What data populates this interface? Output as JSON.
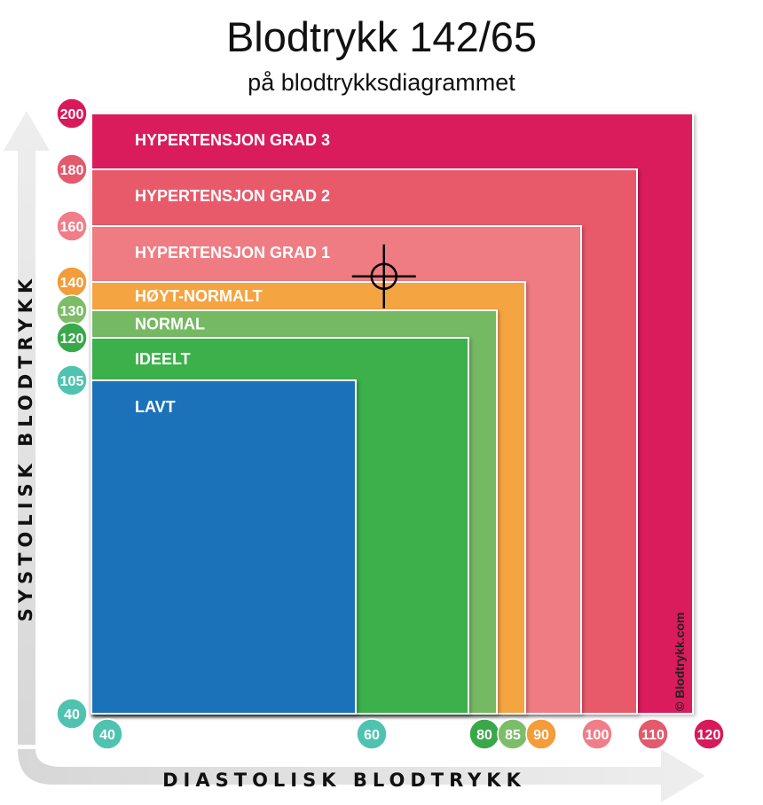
{
  "title": "Blodtrykk 142/65",
  "subtitle": "på blodtrykksdiagrammet",
  "watermark": "© Blodtrykk.com",
  "chart_data": {
    "type": "area",
    "xlabel": "DIASTOLISK BLODTRYKK",
    "ylabel": "SYSTOLISK BLODTRYKK",
    "x_ticks": [
      {
        "label": "40",
        "value": 40,
        "color": "#4fc3b0"
      },
      {
        "label": "60",
        "value": 60,
        "color": "#4fc3b0"
      },
      {
        "label": "80",
        "value": 80,
        "color": "#3aa84a"
      },
      {
        "label": "85",
        "value": 85,
        "color": "#7dbd6a"
      },
      {
        "label": "90",
        "value": 90,
        "color": "#f39c3a"
      },
      {
        "label": "100",
        "value": 100,
        "color": "#ef7e88"
      },
      {
        "label": "110",
        "value": 110,
        "color": "#e25a6c"
      },
      {
        "label": "120",
        "value": 120,
        "color": "#d81a5a"
      }
    ],
    "y_ticks": [
      {
        "label": "200",
        "value": 200,
        "color": "#d81a5a"
      },
      {
        "label": "180",
        "value": 180,
        "color": "#e25a6c"
      },
      {
        "label": "160",
        "value": 160,
        "color": "#ef7e88"
      },
      {
        "label": "140",
        "value": 140,
        "color": "#f39c3a"
      },
      {
        "label": "130",
        "value": 130,
        "color": "#7dbd6a"
      },
      {
        "label": "120",
        "value": 120,
        "color": "#3aa84a"
      },
      {
        "label": "105",
        "value": 105,
        "color": "#4fc3b0"
      },
      {
        "label": "40",
        "value": 40,
        "color": "#4fc3b0"
      }
    ],
    "zones": [
      {
        "name": "HYPERTENSJON GRAD 3",
        "x_max": 120,
        "y_max": 200,
        "color": "#da1b5c"
      },
      {
        "name": "HYPERTENSJON GRAD 2",
        "x_max": 110,
        "y_max": 180,
        "color": "#e85a6b"
      },
      {
        "name": "HYPERTENSJON GRAD 1",
        "x_max": 100,
        "y_max": 160,
        "color": "#ef7b82"
      },
      {
        "name": "HØYT-NORMALT",
        "x_max": 90,
        "y_max": 140,
        "color": "#f5a442"
      },
      {
        "name": "NORMAL",
        "x_max": 85,
        "y_max": 130,
        "color": "#74b963"
      },
      {
        "name": "IDEELT",
        "x_max": 80,
        "y_max": 120,
        "color": "#3bb04b"
      },
      {
        "name": "LAVT",
        "x_max": 60,
        "y_max": 105,
        "color": "#1f72b8"
      }
    ],
    "marker": {
      "x": 65,
      "y": 142
    }
  }
}
